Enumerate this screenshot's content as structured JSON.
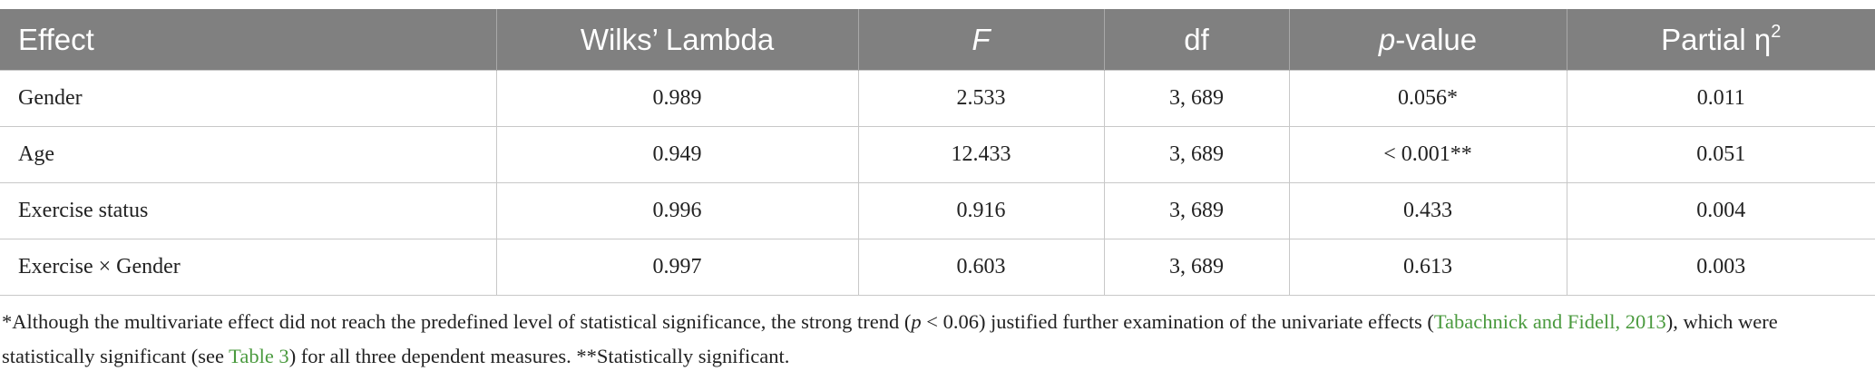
{
  "table": {
    "headers": [
      "Effect",
      "Wilks’ Lambda",
      "F",
      "df",
      [
        "p",
        "-value"
      ],
      [
        "Partial η",
        "2"
      ]
    ],
    "rows": [
      [
        "Gender",
        "0.989",
        "2.533",
        "3, 689",
        "0.056*",
        "0.011"
      ],
      [
        "Age",
        "0.949",
        "12.433",
        "3, 689",
        "< 0.001**",
        "0.051"
      ],
      [
        "Exercise status",
        "0.996",
        "0.916",
        "3, 689",
        "0.433",
        "0.004"
      ],
      [
        "Exercise × Gender",
        "0.997",
        "0.603",
        "3, 689",
        "0.613",
        "0.003"
      ]
    ]
  },
  "footnote": [
    "*Although the multivariate effect did not reach the predefined level of statistical significance, the strong trend (",
    "p",
    " < 0.06) justified further examination of the univariate effects (",
    "Tabachnick and Fidell, 2013",
    "), which were statistically significant (see ",
    "Table 3",
    ") for all three dependent measures. **Statistically significant."
  ]
}
